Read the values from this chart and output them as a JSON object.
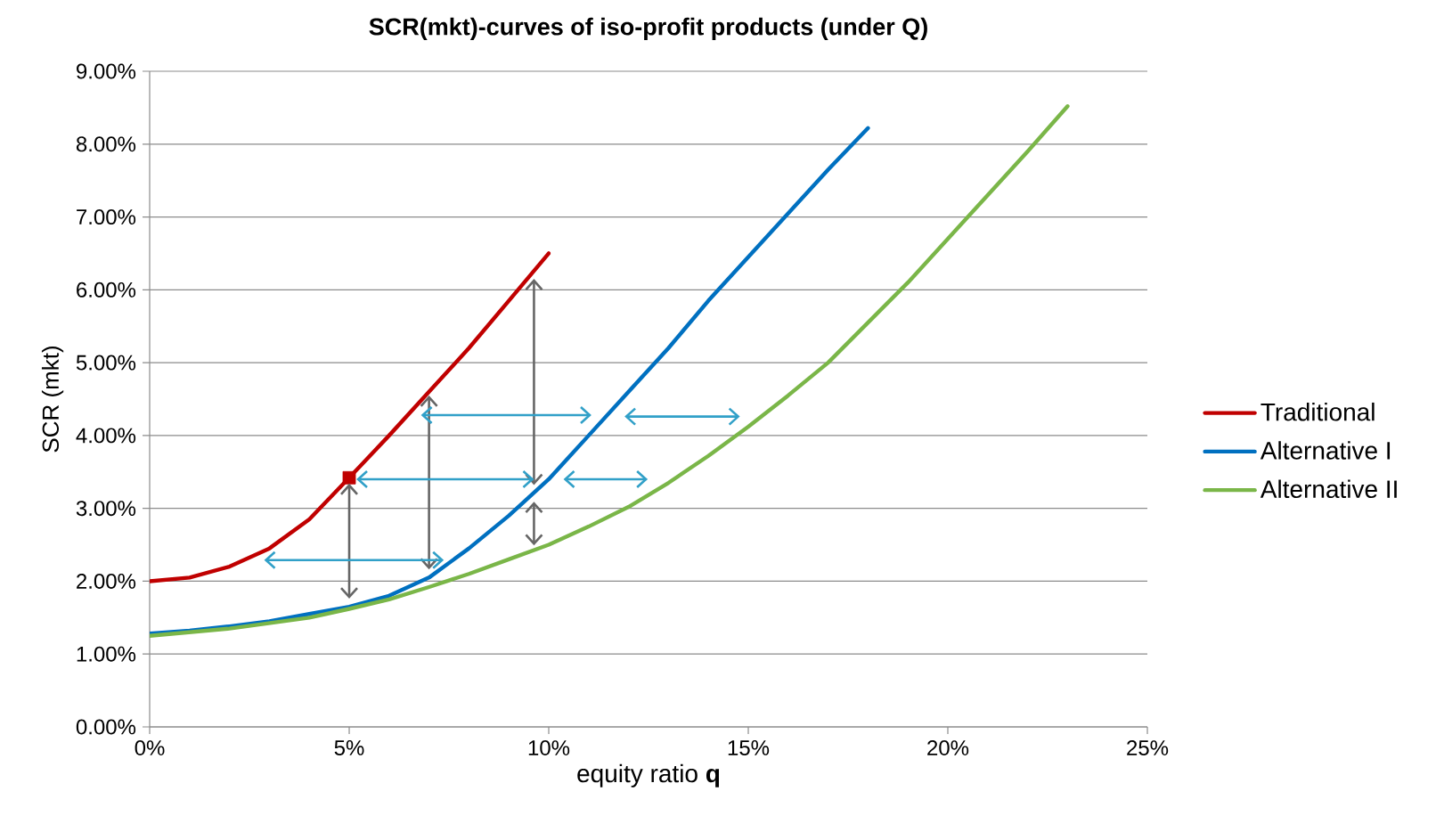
{
  "chart_data": {
    "type": "line",
    "title": "SCR(mkt)-curves of iso-profit products (under Q)",
    "xlabel": "equity  ratio  **q**",
    "ylabel": "SCR (mkt)",
    "xlim": [
      0,
      25
    ],
    "ylim": [
      0,
      9
    ],
    "xticks": [
      {
        "value": 0,
        "label": "0%"
      },
      {
        "value": 5,
        "label": "5%"
      },
      {
        "value": 10,
        "label": "10%"
      },
      {
        "value": 15,
        "label": "15%"
      },
      {
        "value": 20,
        "label": "20%"
      },
      {
        "value": 25,
        "label": "25%"
      }
    ],
    "yticks": [
      {
        "value": 0,
        "label": "0.00%"
      },
      {
        "value": 1,
        "label": "1.00%"
      },
      {
        "value": 2,
        "label": "2.00%"
      },
      {
        "value": 3,
        "label": "3.00%"
      },
      {
        "value": 4,
        "label": "4.00%"
      },
      {
        "value": 5,
        "label": "5.00%"
      },
      {
        "value": 6,
        "label": "6.00%"
      },
      {
        "value": 7,
        "label": "7.00%"
      },
      {
        "value": 8,
        "label": "8.00%"
      },
      {
        "value": 9,
        "label": "9.00%"
      }
    ],
    "grid": "y",
    "legend": "right",
    "marker": "none",
    "line_style": "solid",
    "series": [
      {
        "name": "Traditional",
        "color": "#c00000",
        "x": [
          0,
          1,
          2,
          3,
          4,
          5,
          6,
          7,
          8,
          9,
          10
        ],
        "values": [
          2.0,
          2.05,
          2.2,
          2.45,
          2.85,
          3.42,
          4.0,
          4.6,
          5.2,
          5.85,
          6.5
        ]
      },
      {
        "name": "Alternative I",
        "color": "#0070c0",
        "x": [
          0,
          1,
          2,
          3,
          4,
          5,
          6,
          7,
          8,
          9,
          10,
          11,
          12,
          13,
          14,
          15,
          16,
          17,
          18
        ],
        "values": [
          1.28,
          1.32,
          1.38,
          1.45,
          1.55,
          1.65,
          1.8,
          2.05,
          2.45,
          2.9,
          3.4,
          4.0,
          4.6,
          5.2,
          5.85,
          6.45,
          7.05,
          7.65,
          8.22
        ]
      },
      {
        "name": "Alternative II",
        "color": "#7ab648",
        "x": [
          0,
          2,
          4,
          5,
          6,
          7,
          8,
          9,
          10,
          11,
          12,
          13,
          14,
          15,
          16,
          17,
          18,
          19,
          20,
          21,
          22,
          23
        ],
        "values": [
          1.25,
          1.35,
          1.5,
          1.62,
          1.75,
          1.92,
          2.1,
          2.3,
          2.5,
          2.75,
          3.02,
          3.35,
          3.72,
          4.12,
          4.55,
          5.0,
          5.55,
          6.1,
          6.7,
          7.3,
          7.9,
          8.52
        ]
      },
      {
        "type": "scatter",
        "marker": "square",
        "color": "#c00000",
        "x": [
          5
        ],
        "values": [
          3.42
        ]
      }
    ]
  }
}
